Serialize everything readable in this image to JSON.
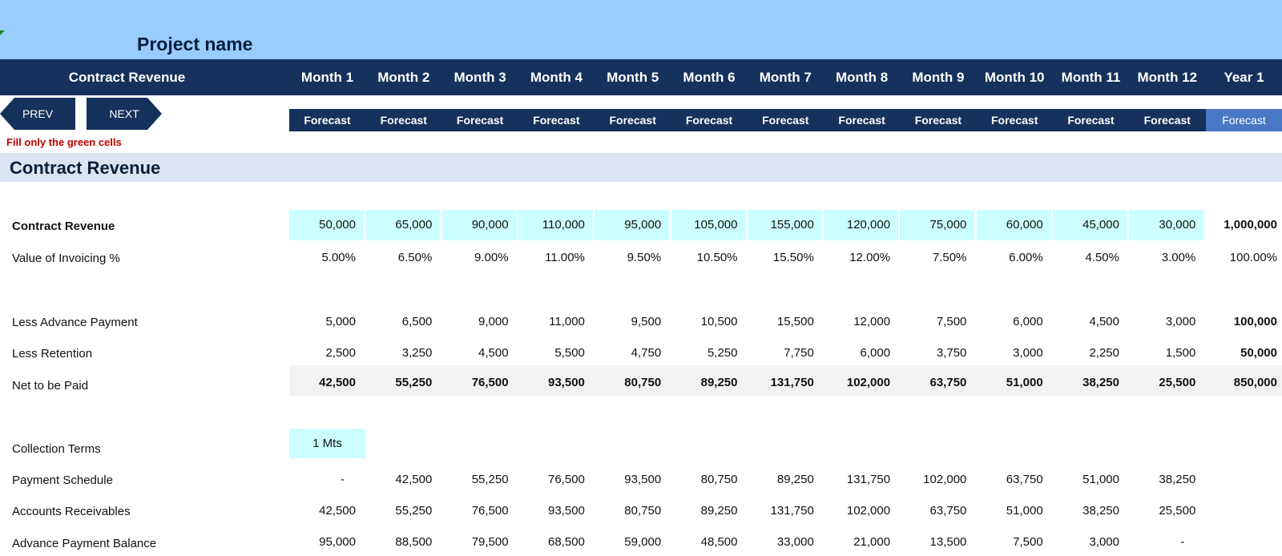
{
  "project_title": "Project name",
  "header": {
    "section_label": "Contract Revenue",
    "months": [
      "Month 1",
      "Month 2",
      "Month 3",
      "Month 4",
      "Month 5",
      "Month 6",
      "Month 7",
      "Month 8",
      "Month 9",
      "Month 10",
      "Month 11",
      "Month 12",
      "Year 1"
    ],
    "forecast_labels": [
      "Forecast",
      "Forecast",
      "Forecast",
      "Forecast",
      "Forecast",
      "Forecast",
      "Forecast",
      "Forecast",
      "Forecast",
      "Forecast",
      "Forecast",
      "Forecast",
      "Forecast"
    ]
  },
  "nav": {
    "prev_label": "PREV",
    "next_label": "NEXT"
  },
  "instruction": "Fill only the green cells",
  "section_title": "Contract Revenue",
  "colors": {
    "header_navy": "#14325b",
    "top_band": "#99ccff",
    "input_cell": "#ccffff",
    "year_forecast": "#4a78c6",
    "instruction_red": "#c00000"
  },
  "rows": {
    "contract_revenue": {
      "label": "Contract Revenue",
      "values": [
        "50,000",
        "65,000",
        "90,000",
        "110,000",
        "95,000",
        "105,000",
        "155,000",
        "120,000",
        "75,000",
        "60,000",
        "45,000",
        "30,000"
      ],
      "total": "1,000,000"
    },
    "invoicing": {
      "label": "Value of Invoicing %",
      "values": [
        "5.00%",
        "6.50%",
        "9.00%",
        "11.00%",
        "9.50%",
        "10.50%",
        "15.50%",
        "12.00%",
        "7.50%",
        "6.00%",
        "4.50%",
        "3.00%"
      ],
      "total": "100.00%"
    },
    "advance": {
      "label": "Less Advance Payment",
      "values": [
        "5,000",
        "6,500",
        "9,000",
        "11,000",
        "9,500",
        "10,500",
        "15,500",
        "12,000",
        "7,500",
        "6,000",
        "4,500",
        "3,000"
      ],
      "total": "100,000"
    },
    "retention": {
      "label": "Less Retention",
      "values": [
        "2,500",
        "3,250",
        "4,500",
        "5,500",
        "4,750",
        "5,250",
        "7,750",
        "6,000",
        "3,750",
        "3,000",
        "2,250",
        "1,500"
      ],
      "total": "50,000"
    },
    "net": {
      "label": "Net to be Paid",
      "values": [
        "42,500",
        "55,250",
        "76,500",
        "93,500",
        "80,750",
        "89,250",
        "131,750",
        "102,000",
        "63,750",
        "51,000",
        "38,250",
        "25,500"
      ],
      "total": "850,000"
    },
    "collection": {
      "label": "Collection Terms",
      "value": "1 Mts"
    },
    "schedule": {
      "label": "Payment Schedule",
      "values": [
        "-",
        "42,500",
        "55,250",
        "76,500",
        "93,500",
        "80,750",
        "89,250",
        "131,750",
        "102,000",
        "63,750",
        "51,000",
        "38,250"
      ]
    },
    "receivables": {
      "label": "Accounts Receivables",
      "values": [
        "42,500",
        "55,250",
        "76,500",
        "93,500",
        "80,750",
        "89,250",
        "131,750",
        "102,000",
        "63,750",
        "51,000",
        "38,250",
        "25,500"
      ]
    },
    "adv_balance": {
      "label": "Advance Payment Balance",
      "values": [
        "95,000",
        "88,500",
        "79,500",
        "68,500",
        "59,000",
        "48,500",
        "33,000",
        "21,000",
        "13,500",
        "7,500",
        "3,000",
        "-"
      ]
    }
  }
}
